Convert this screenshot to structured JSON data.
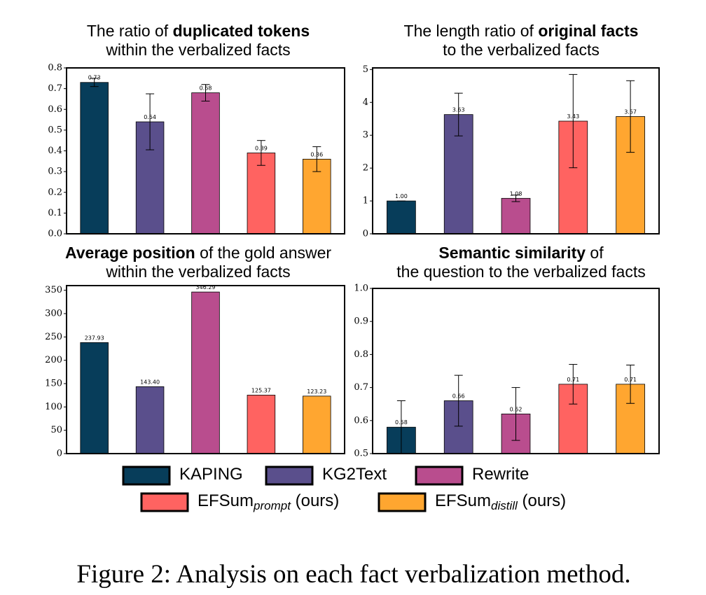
{
  "chart_data": [
    {
      "type": "bar",
      "title": [
        [
          {
            "text": "The ratio of "
          },
          {
            "text": "duplicated tokens",
            "bold": true
          }
        ],
        [
          {
            "text": "within the verbalized facts"
          }
        ]
      ],
      "values": [
        0.73,
        0.54,
        0.68,
        0.39,
        0.36
      ],
      "errors": [
        0.02,
        0.135,
        0.04,
        0.06,
        0.06
      ],
      "ylim": [
        0,
        0.8
      ],
      "yticks": [
        {
          "value": 0,
          "label": "0.0"
        },
        0.1,
        0.2,
        0.3,
        0.4,
        0.5,
        0.6,
        0.7,
        0.8
      ]
    },
    {
      "type": "bar",
      "title": [
        [
          {
            "text": "The length ratio of "
          },
          {
            "text": "original facts",
            "bold": true
          }
        ],
        [
          {
            "text": "to the verbalized facts"
          }
        ]
      ],
      "values": [
        1.0,
        3.63,
        1.08,
        3.43,
        3.57
      ],
      "value_labels": [
        "1.00",
        "3.63",
        "1.08",
        "3.43",
        "3.57"
      ],
      "errors": [
        0,
        0.65,
        0.1,
        1.42,
        1.09
      ],
      "ylim": [
        0,
        5.05
      ],
      "yticks": [
        0,
        1,
        2,
        3,
        4,
        5
      ]
    },
    {
      "type": "bar",
      "title": [
        [
          {
            "text": "Average position",
            "bold": true
          },
          {
            "text": " of the gold answer"
          }
        ],
        [
          {
            "text": "within the verbalized facts"
          }
        ]
      ],
      "values": [
        237.93,
        143.4,
        346.29,
        125.37,
        123.23
      ],
      "value_labels": [
        "237.93",
        "143.40",
        "346.29",
        "125.37",
        "123.23"
      ],
      "ylim": [
        0,
        360
      ],
      "yticks": [
        0,
        50,
        100,
        150,
        200,
        250,
        300,
        350
      ]
    },
    {
      "type": "bar",
      "title": [
        [
          {
            "text": "Semantic similarity",
            "bold": true
          },
          {
            "text": " of"
          }
        ],
        [
          {
            "text": "the question to the verbalized facts"
          }
        ]
      ],
      "values": [
        0.58,
        0.66,
        0.62,
        0.71,
        0.71
      ],
      "errors": [
        0.08,
        0.077,
        0.08,
        0.06,
        0.058
      ],
      "ylim": [
        0.5,
        1.0
      ],
      "yticks": [
        0.5,
        0.6,
        0.7,
        0.8,
        0.9,
        {
          "value": 1.0,
          "label": "1.0"
        }
      ]
    }
  ],
  "legend": {
    "items": [
      {
        "name": "KAPING",
        "color": "#073d5a"
      },
      {
        "name": "KG2Text",
        "color": "#5a4f8c"
      },
      {
        "name": "Rewrite",
        "color": "#b94d8e"
      },
      {
        "name": "EFSum",
        "subscript": "prompt",
        "suffix": " (ours)",
        "color": "#ff6361"
      },
      {
        "name": "EFSum",
        "subscript": "distill",
        "suffix": " (ours)",
        "color": "#ffa630"
      }
    ]
  },
  "caption": "Figure 2: Analysis on each fact verbalization method."
}
